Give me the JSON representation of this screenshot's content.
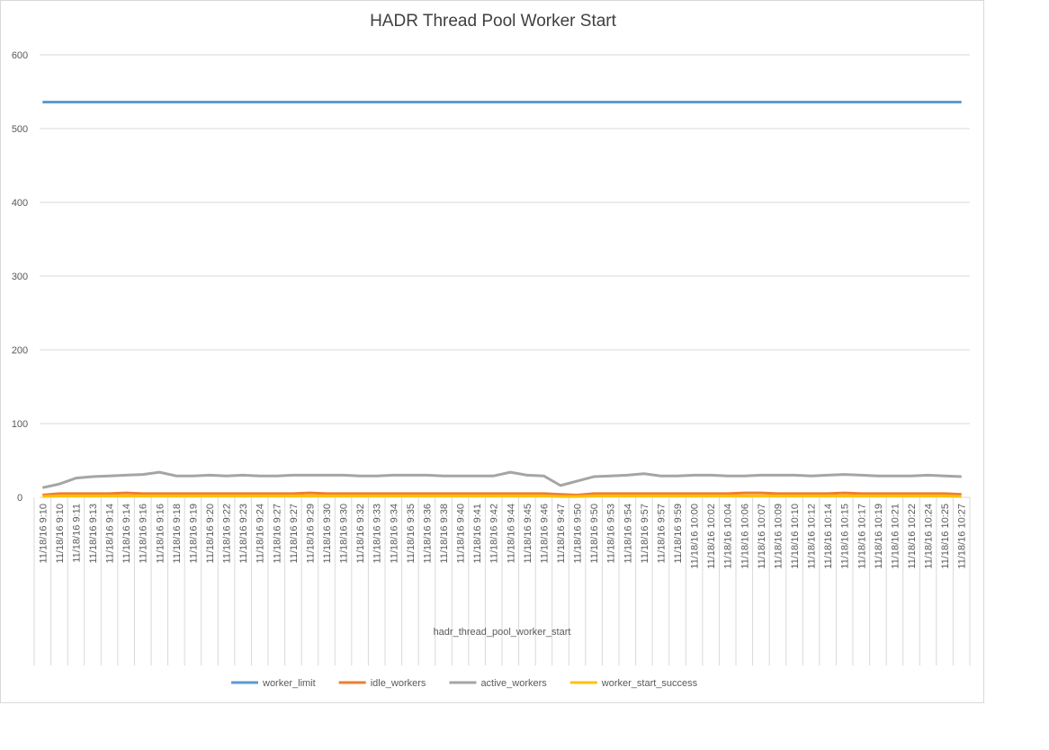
{
  "chart_data": {
    "type": "line",
    "title": "HADR Thread Pool Worker Start",
    "group_label": "hadr_thread_pool_worker_start",
    "categories": [
      "11/18/16 9:10",
      "11/18/16 9:10",
      "11/18/16 9:11",
      "11/18/16 9:13",
      "11/18/16 9:14",
      "11/18/16 9:14",
      "11/18/16 9:16",
      "11/18/16 9:16",
      "11/18/16 9:18",
      "11/18/16 9:19",
      "11/18/16 9:20",
      "11/18/16 9:22",
      "11/18/16 9:23",
      "11/18/16 9:24",
      "11/18/16 9:27",
      "11/18/16 9:27",
      "11/18/16 9:29",
      "11/18/16 9:30",
      "11/18/16 9:30",
      "11/18/16 9:32",
      "11/18/16 9:33",
      "11/18/16 9:34",
      "11/18/16 9:35",
      "11/18/16 9:36",
      "11/18/16 9:38",
      "11/18/16 9:40",
      "11/18/16 9:41",
      "11/18/16 9:42",
      "11/18/16 9:44",
      "11/18/16 9:45",
      "11/18/16 9:46",
      "11/18/16 9:47",
      "11/18/16 9:50",
      "11/18/16 9:50",
      "11/18/16 9:53",
      "11/18/16 9:54",
      "11/18/16 9:57",
      "11/18/16 9:57",
      "11/18/16 9:59",
      "11/18/16 10:00",
      "11/18/16 10:02",
      "11/18/16 10:04",
      "11/18/16 10:06",
      "11/18/16 10:07",
      "11/18/16 10:09",
      "11/18/16 10:10",
      "11/18/16 10:12",
      "11/18/16 10:14",
      "11/18/16 10:15",
      "11/18/16 10:17",
      "11/18/16 10:19",
      "11/18/16 10:21",
      "11/18/16 10:22",
      "11/18/16 10:24",
      "11/18/16 10:25",
      "11/18/16 10:27"
    ],
    "series": [
      {
        "name": "worker_limit",
        "color": "#5b9bd5",
        "values": [
          536,
          536,
          536,
          536,
          536,
          536,
          536,
          536,
          536,
          536,
          536,
          536,
          536,
          536,
          536,
          536,
          536,
          536,
          536,
          536,
          536,
          536,
          536,
          536,
          536,
          536,
          536,
          536,
          536,
          536,
          536,
          536,
          536,
          536,
          536,
          536,
          536,
          536,
          536,
          536,
          536,
          536,
          536,
          536,
          536,
          536,
          536,
          536,
          536,
          536,
          536,
          536,
          536,
          536,
          536,
          536
        ]
      },
      {
        "name": "idle_workers",
        "color": "#ed7d31",
        "values": [
          3,
          5,
          5,
          5,
          5,
          6,
          5,
          5,
          5,
          5,
          5,
          5,
          5,
          5,
          5,
          5,
          6,
          5,
          5,
          5,
          5,
          5,
          5,
          5,
          5,
          5,
          5,
          5,
          5,
          5,
          5,
          4,
          3,
          5,
          5,
          5,
          5,
          5,
          5,
          5,
          5,
          5,
          6,
          6,
          5,
          5,
          5,
          5,
          6,
          5,
          5,
          5,
          5,
          5,
          5,
          4
        ]
      },
      {
        "name": "active_workers",
        "color": "#a5a5a5",
        "values": [
          13,
          18,
          26,
          28,
          29,
          30,
          31,
          34,
          29,
          29,
          30,
          29,
          30,
          29,
          29,
          30,
          30,
          30,
          30,
          29,
          29,
          30,
          30,
          30,
          29,
          29,
          29,
          29,
          34,
          30,
          29,
          16,
          22,
          28,
          29,
          30,
          32,
          29,
          29,
          30,
          30,
          29,
          29,
          30,
          30,
          30,
          29,
          30,
          31,
          30,
          29,
          29,
          29,
          30,
          29,
          28
        ]
      },
      {
        "name": "worker_start_success",
        "color": "#ffc000",
        "values": [
          1,
          2,
          2,
          2,
          2,
          2,
          2,
          2,
          2,
          2,
          2,
          2,
          2,
          2,
          2,
          2,
          2,
          2,
          2,
          2,
          2,
          2,
          2,
          2,
          2,
          2,
          2,
          2,
          2,
          2,
          2,
          1,
          1,
          2,
          2,
          2,
          2,
          2,
          2,
          2,
          2,
          2,
          2,
          2,
          2,
          2,
          2,
          2,
          2,
          2,
          2,
          2,
          2,
          2,
          2,
          1
        ]
      }
    ],
    "ylim": [
      0,
      600
    ],
    "yticks": [
      0,
      100,
      200,
      300,
      400,
      500,
      600
    ],
    "grid": true,
    "legend": "bottom"
  }
}
